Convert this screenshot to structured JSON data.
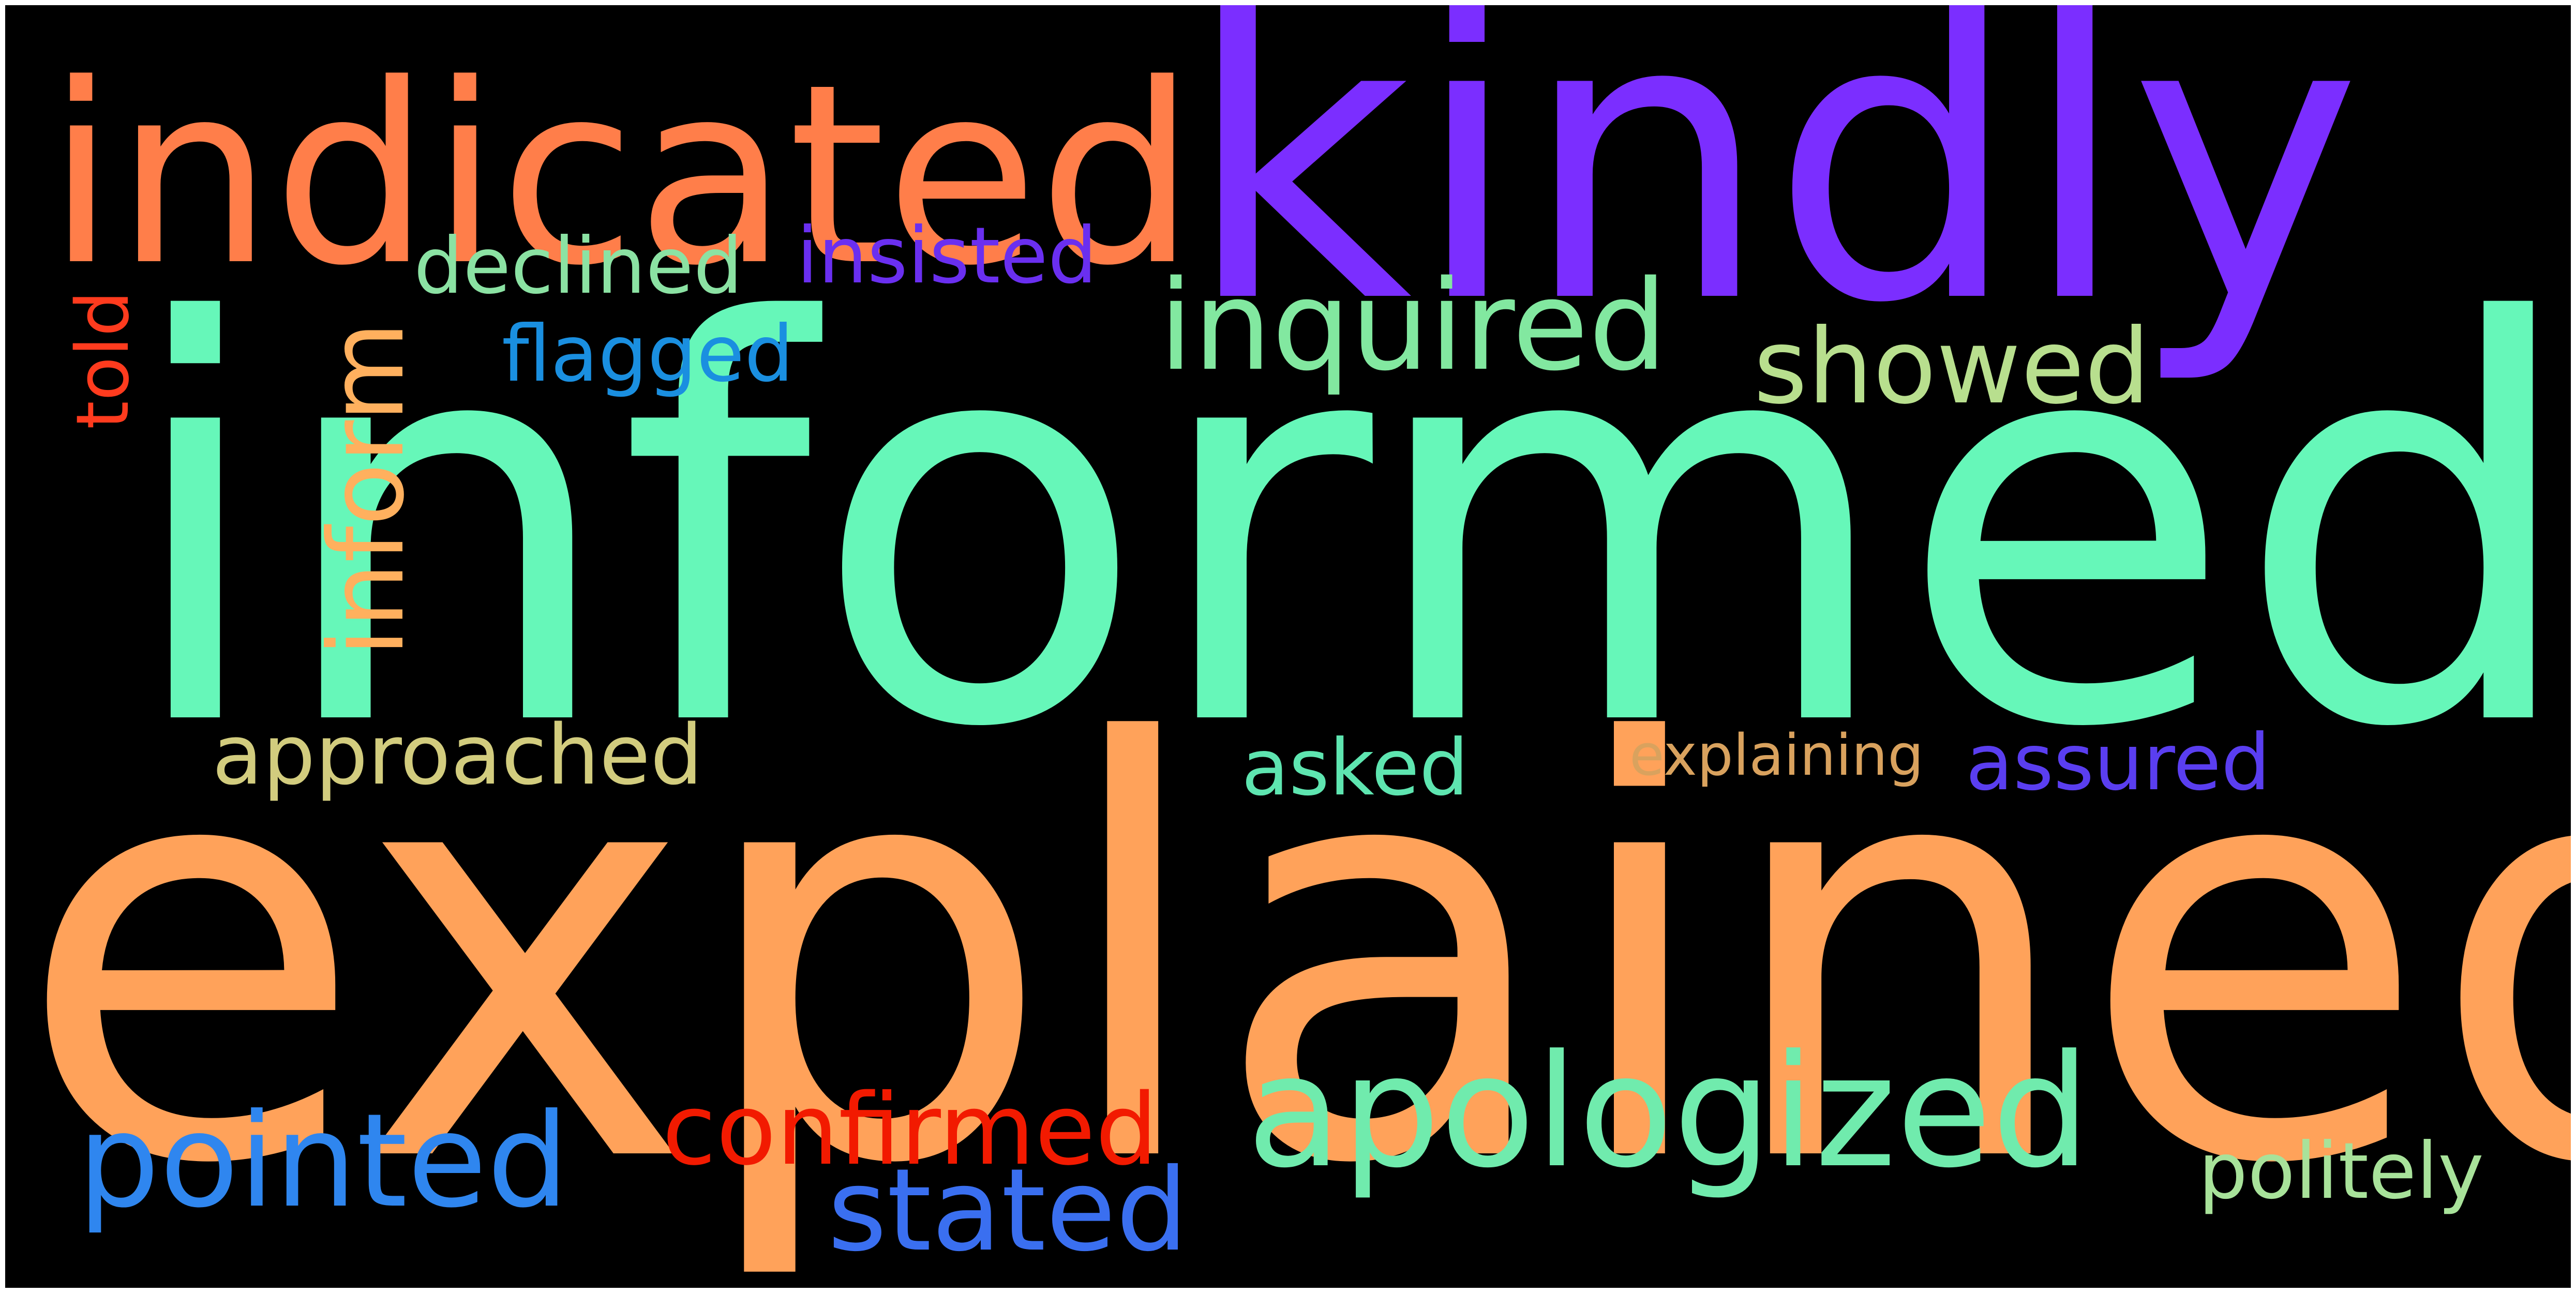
{
  "background_color": "#000000",
  "frame_color": "#ffffff",
  "words": [
    {
      "id": "kindly",
      "text": "kindly",
      "color": "#7b2eff"
    },
    {
      "id": "indicated",
      "text": "indicated",
      "color": "#ff7e4a"
    },
    {
      "id": "informed",
      "text": "informed",
      "color": "#66f7b9"
    },
    {
      "id": "explained",
      "text": "explained",
      "color": "#ffa25a"
    },
    {
      "id": "apologized",
      "text": "apologized",
      "color": "#70ebad"
    },
    {
      "id": "inquired",
      "text": "inquired",
      "color": "#82e8a0"
    },
    {
      "id": "showed",
      "text": "showed",
      "color": "#b8df8e"
    },
    {
      "id": "declined",
      "text": "declined",
      "color": "#8be2a3"
    },
    {
      "id": "insisted",
      "text": "insisted",
      "color": "#6a2ff0"
    },
    {
      "id": "flagged",
      "text": "flagged",
      "color": "#1a8fe0"
    },
    {
      "id": "inform",
      "text": "inform",
      "color": "#ffb05e"
    },
    {
      "id": "told",
      "text": "told",
      "color": "#ff3b1e"
    },
    {
      "id": "approached",
      "text": "approached",
      "color": "#d2cc7e"
    },
    {
      "id": "asked",
      "text": "asked",
      "color": "#5ee5b0"
    },
    {
      "id": "explaining",
      "text": "explaining",
      "color": "#d9a25e"
    },
    {
      "id": "assured",
      "text": "assured",
      "color": "#5a3ef0"
    },
    {
      "id": "pointed",
      "text": "pointed",
      "color": "#2f86ef"
    },
    {
      "id": "confirmed",
      "text": "confirmed",
      "color": "#f21a00"
    },
    {
      "id": "stated",
      "text": "stated",
      "color": "#3a6ff0"
    },
    {
      "id": "politely",
      "text": "politely",
      "color": "#a8e29a"
    }
  ]
}
